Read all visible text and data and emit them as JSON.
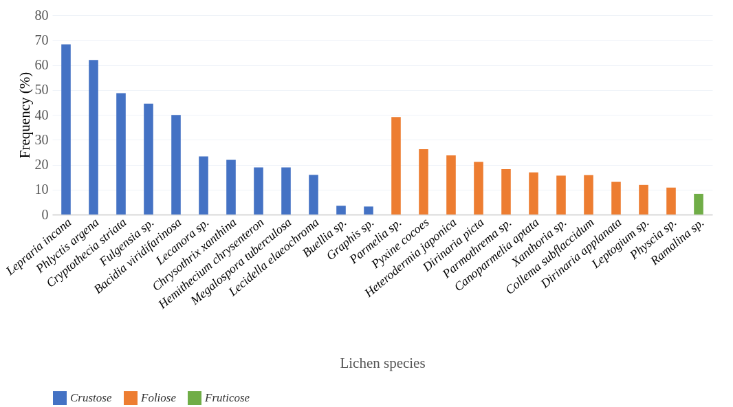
{
  "chart_data": {
    "type": "bar",
    "xlabel": "Lichen species",
    "ylabel": "Frequency (%)",
    "categories": [
      "Lepraria incana",
      "Phlyctis argena",
      "Cryptothecia striata",
      "Fulgensia sp.",
      "Bacidia viridifarinosa",
      "Lecanora sp.",
      "Chrysothrix xanthina",
      "Hemithecium chrysenteron",
      "Megalospora tuberculosa",
      "Lecidella elaeochroma",
      "Buellia sp.",
      "Graphis sp.",
      "Parmelia sp.",
      "Pyxine cocoes",
      "Heterodermia japonica",
      "Dirinaria picta",
      "Parmothrema sp.",
      "Canoparmelia aptata",
      "Xanthoria sp.",
      "Collema subflaccidum",
      "Dirinaria applanata",
      "Leptogium sp.",
      "Physcia sp.",
      "Ramalina sp."
    ],
    "series": [
      {
        "name": "Crustose",
        "color": "#4472c4",
        "values": [
          68.3,
          62,
          48.7,
          44.5,
          39.9,
          23.3,
          21.9,
          18.9,
          18.9,
          15.9,
          3.5,
          3.2,
          null,
          null,
          null,
          null,
          null,
          null,
          null,
          null,
          null,
          null,
          null,
          null
        ]
      },
      {
        "name": "Foliose",
        "color": "#ed7d31",
        "values": [
          null,
          null,
          null,
          null,
          null,
          null,
          null,
          null,
          null,
          null,
          null,
          null,
          39.1,
          26.2,
          23.7,
          21.1,
          18.2,
          16.9,
          15.6,
          15.8,
          13.1,
          11.9,
          10.8,
          null
        ]
      },
      {
        "name": "Fruticose",
        "color": "#70ad47",
        "values": [
          null,
          null,
          null,
          null,
          null,
          null,
          null,
          null,
          null,
          null,
          null,
          null,
          null,
          null,
          null,
          null,
          null,
          null,
          null,
          null,
          null,
          null,
          null,
          8.3
        ]
      }
    ],
    "ylim": [
      0,
      80
    ],
    "yticks": [
      0,
      10,
      20,
      30,
      40,
      50,
      60,
      70,
      80
    ],
    "grid": "y",
    "legend": "bottom"
  }
}
